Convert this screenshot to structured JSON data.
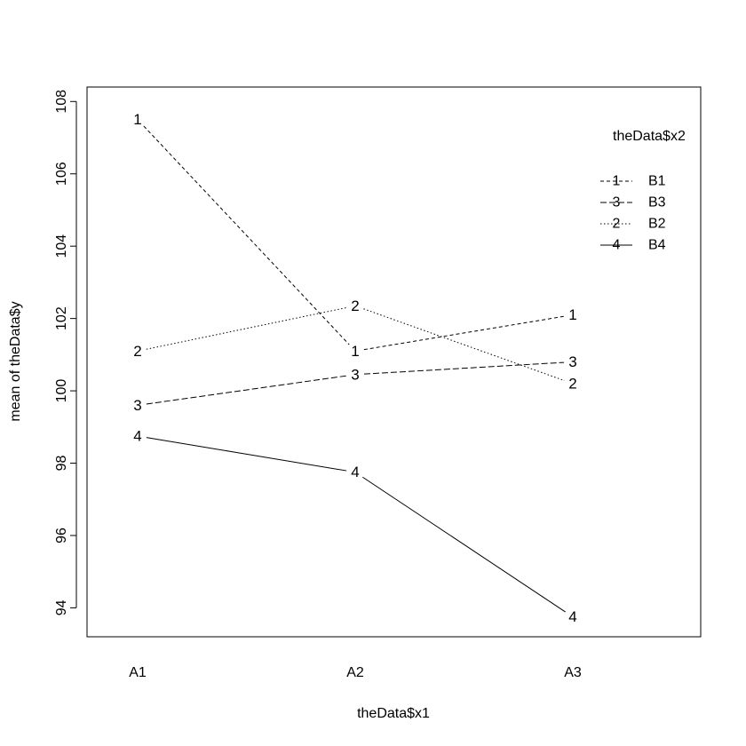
{
  "chart_data": {
    "type": "line",
    "title": "",
    "xlabel": "theData$x1",
    "ylabel": "mean of  theData$y",
    "categories": [
      "A1",
      "A2",
      "A3"
    ],
    "ylim": [
      93.2,
      108.4
    ],
    "yticks": [
      "94",
      "96",
      "98",
      "100",
      "102",
      "104",
      "106",
      "108"
    ],
    "legend": {
      "title": "theData$x2",
      "placement": "top-right",
      "entries": [
        {
          "symbol": "1",
          "label": "B1",
          "series": 0
        },
        {
          "symbol": "3",
          "label": "B3",
          "series": 2
        },
        {
          "symbol": "2",
          "label": "B2",
          "series": 1
        },
        {
          "symbol": "4",
          "label": "B4",
          "series": 3
        }
      ]
    },
    "series": [
      {
        "name": "B1",
        "symbol": "1",
        "linestyle": "dashed",
        "values": [
          107.5,
          101.1,
          102.1
        ]
      },
      {
        "name": "B2",
        "symbol": "2",
        "linestyle": "dotted",
        "values": [
          101.1,
          102.35,
          100.2
        ]
      },
      {
        "name": "B3",
        "symbol": "3",
        "linestyle": "longdash",
        "values": [
          99.6,
          100.45,
          100.8
        ]
      },
      {
        "name": "B4",
        "symbol": "4",
        "linestyle": "solid",
        "values": [
          98.75,
          97.75,
          93.75
        ]
      }
    ],
    "grid": false,
    "line_color": "#000000"
  }
}
